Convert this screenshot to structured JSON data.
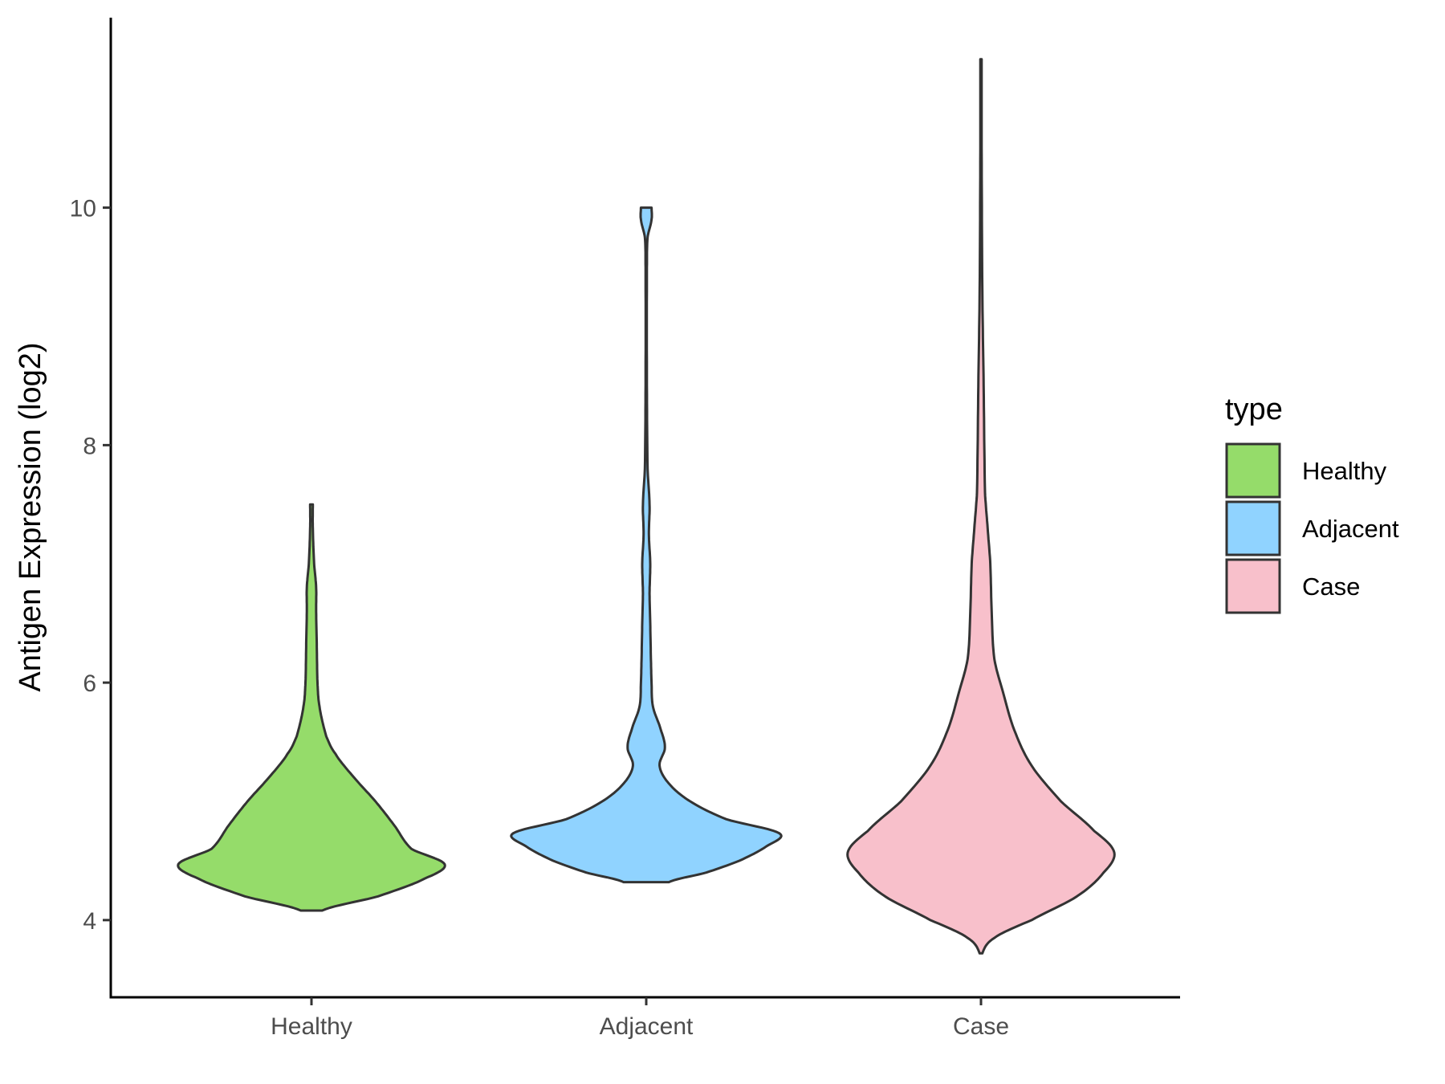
{
  "chart_data": {
    "type": "violin",
    "title": "",
    "xlabel": "",
    "ylabel": "Antigen Expression (log2)",
    "categories": [
      "Healthy",
      "Adjacent",
      "Case"
    ],
    "ylim": [
      3.35,
      11.6
    ],
    "yticks": [
      4,
      6,
      8,
      10
    ],
    "legend": {
      "title": "type",
      "placement": "right",
      "entries": [
        "Healthy",
        "Adjacent",
        "Case"
      ]
    },
    "colors": {
      "Healthy": "#95dc6a",
      "Adjacent": "#90d3ff",
      "Case": "#f8c0cb",
      "outline": "#333333",
      "axis": "#000000"
    },
    "series": [
      {
        "category": "Healthy",
        "min": 4.08,
        "max": 7.5,
        "density_profile": [
          [
            4.08,
            0.08
          ],
          [
            4.2,
            0.5
          ],
          [
            4.35,
            0.85
          ],
          [
            4.47,
            1.0
          ],
          [
            4.6,
            0.75
          ],
          [
            4.8,
            0.62
          ],
          [
            5.0,
            0.48
          ],
          [
            5.2,
            0.32
          ],
          [
            5.4,
            0.18
          ],
          [
            5.55,
            0.11
          ],
          [
            5.8,
            0.06
          ],
          [
            6.0,
            0.045
          ],
          [
            6.3,
            0.04
          ],
          [
            6.6,
            0.035
          ],
          [
            6.8,
            0.035
          ],
          [
            7.0,
            0.02
          ],
          [
            7.3,
            0.01
          ],
          [
            7.5,
            0.01
          ]
        ]
      },
      {
        "category": "Adjacent",
        "min": 4.32,
        "max": 10.0,
        "density_profile": [
          [
            4.32,
            0.17
          ],
          [
            4.4,
            0.45
          ],
          [
            4.5,
            0.7
          ],
          [
            4.62,
            0.9
          ],
          [
            4.73,
            1.0
          ],
          [
            4.85,
            0.6
          ],
          [
            5.0,
            0.33
          ],
          [
            5.15,
            0.17
          ],
          [
            5.3,
            0.1
          ],
          [
            5.45,
            0.14
          ],
          [
            5.6,
            0.11
          ],
          [
            5.8,
            0.05
          ],
          [
            6.0,
            0.04
          ],
          [
            6.2,
            0.035
          ],
          [
            6.5,
            0.03
          ],
          [
            6.75,
            0.025
          ],
          [
            7.0,
            0.03
          ],
          [
            7.25,
            0.02
          ],
          [
            7.5,
            0.025
          ],
          [
            7.8,
            0.01
          ],
          [
            8.5,
            0.005
          ],
          [
            9.5,
            0.005
          ],
          [
            9.75,
            0.01
          ],
          [
            9.9,
            0.04
          ],
          [
            10.0,
            0.04
          ]
        ]
      },
      {
        "category": "Case",
        "min": 3.72,
        "max": 11.25,
        "density_profile": [
          [
            3.72,
            0.01
          ],
          [
            3.85,
            0.1
          ],
          [
            4.0,
            0.38
          ],
          [
            4.2,
            0.72
          ],
          [
            4.4,
            0.92
          ],
          [
            4.57,
            1.0
          ],
          [
            4.75,
            0.85
          ],
          [
            5.0,
            0.6
          ],
          [
            5.3,
            0.38
          ],
          [
            5.6,
            0.25
          ],
          [
            5.9,
            0.17
          ],
          [
            6.2,
            0.1
          ],
          [
            6.6,
            0.08
          ],
          [
            7.0,
            0.07
          ],
          [
            7.3,
            0.05
          ],
          [
            7.6,
            0.03
          ],
          [
            8.5,
            0.02
          ],
          [
            9.3,
            0.01
          ],
          [
            10.5,
            0.005
          ],
          [
            11.25,
            0.005
          ]
        ]
      }
    ]
  }
}
